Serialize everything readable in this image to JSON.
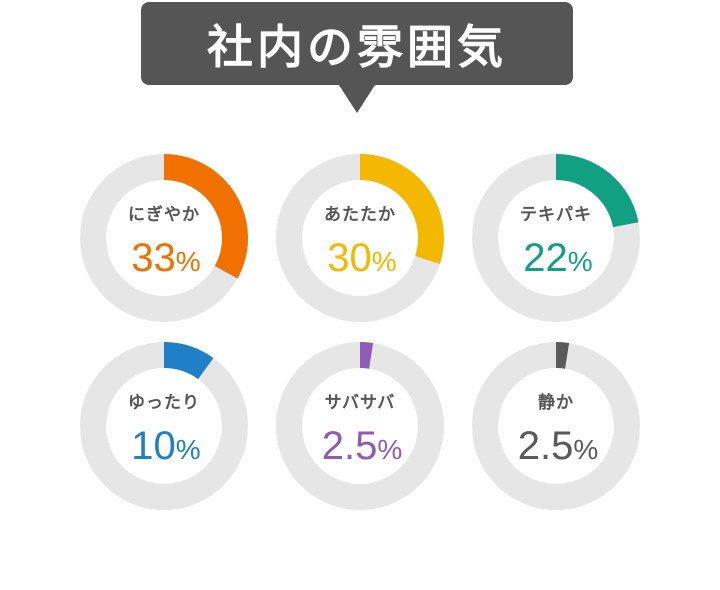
{
  "title": "社内の雰囲気",
  "chart_data": {
    "type": "donut",
    "title": "社内の雰囲気",
    "series": [
      {
        "name": "にぎやか",
        "value": 33,
        "display": "33",
        "color": "#f07000"
      },
      {
        "name": "あたたか",
        "value": 30,
        "display": "30",
        "color": "#f4b800"
      },
      {
        "name": "テキパキ",
        "value": 22,
        "display": "22",
        "color": "#12a083"
      },
      {
        "name": "ゆったり",
        "value": 10,
        "display": "10",
        "color": "#1f7fc7"
      },
      {
        "name": "サバサバ",
        "value": 2.5,
        "display": "2.5",
        "color": "#8e5bb5"
      },
      {
        "name": "静か",
        "value": 2.5,
        "display": "2.5",
        "color": "#5a5a5a"
      }
    ],
    "unit": "%",
    "track_color": "#e6e6e6"
  }
}
